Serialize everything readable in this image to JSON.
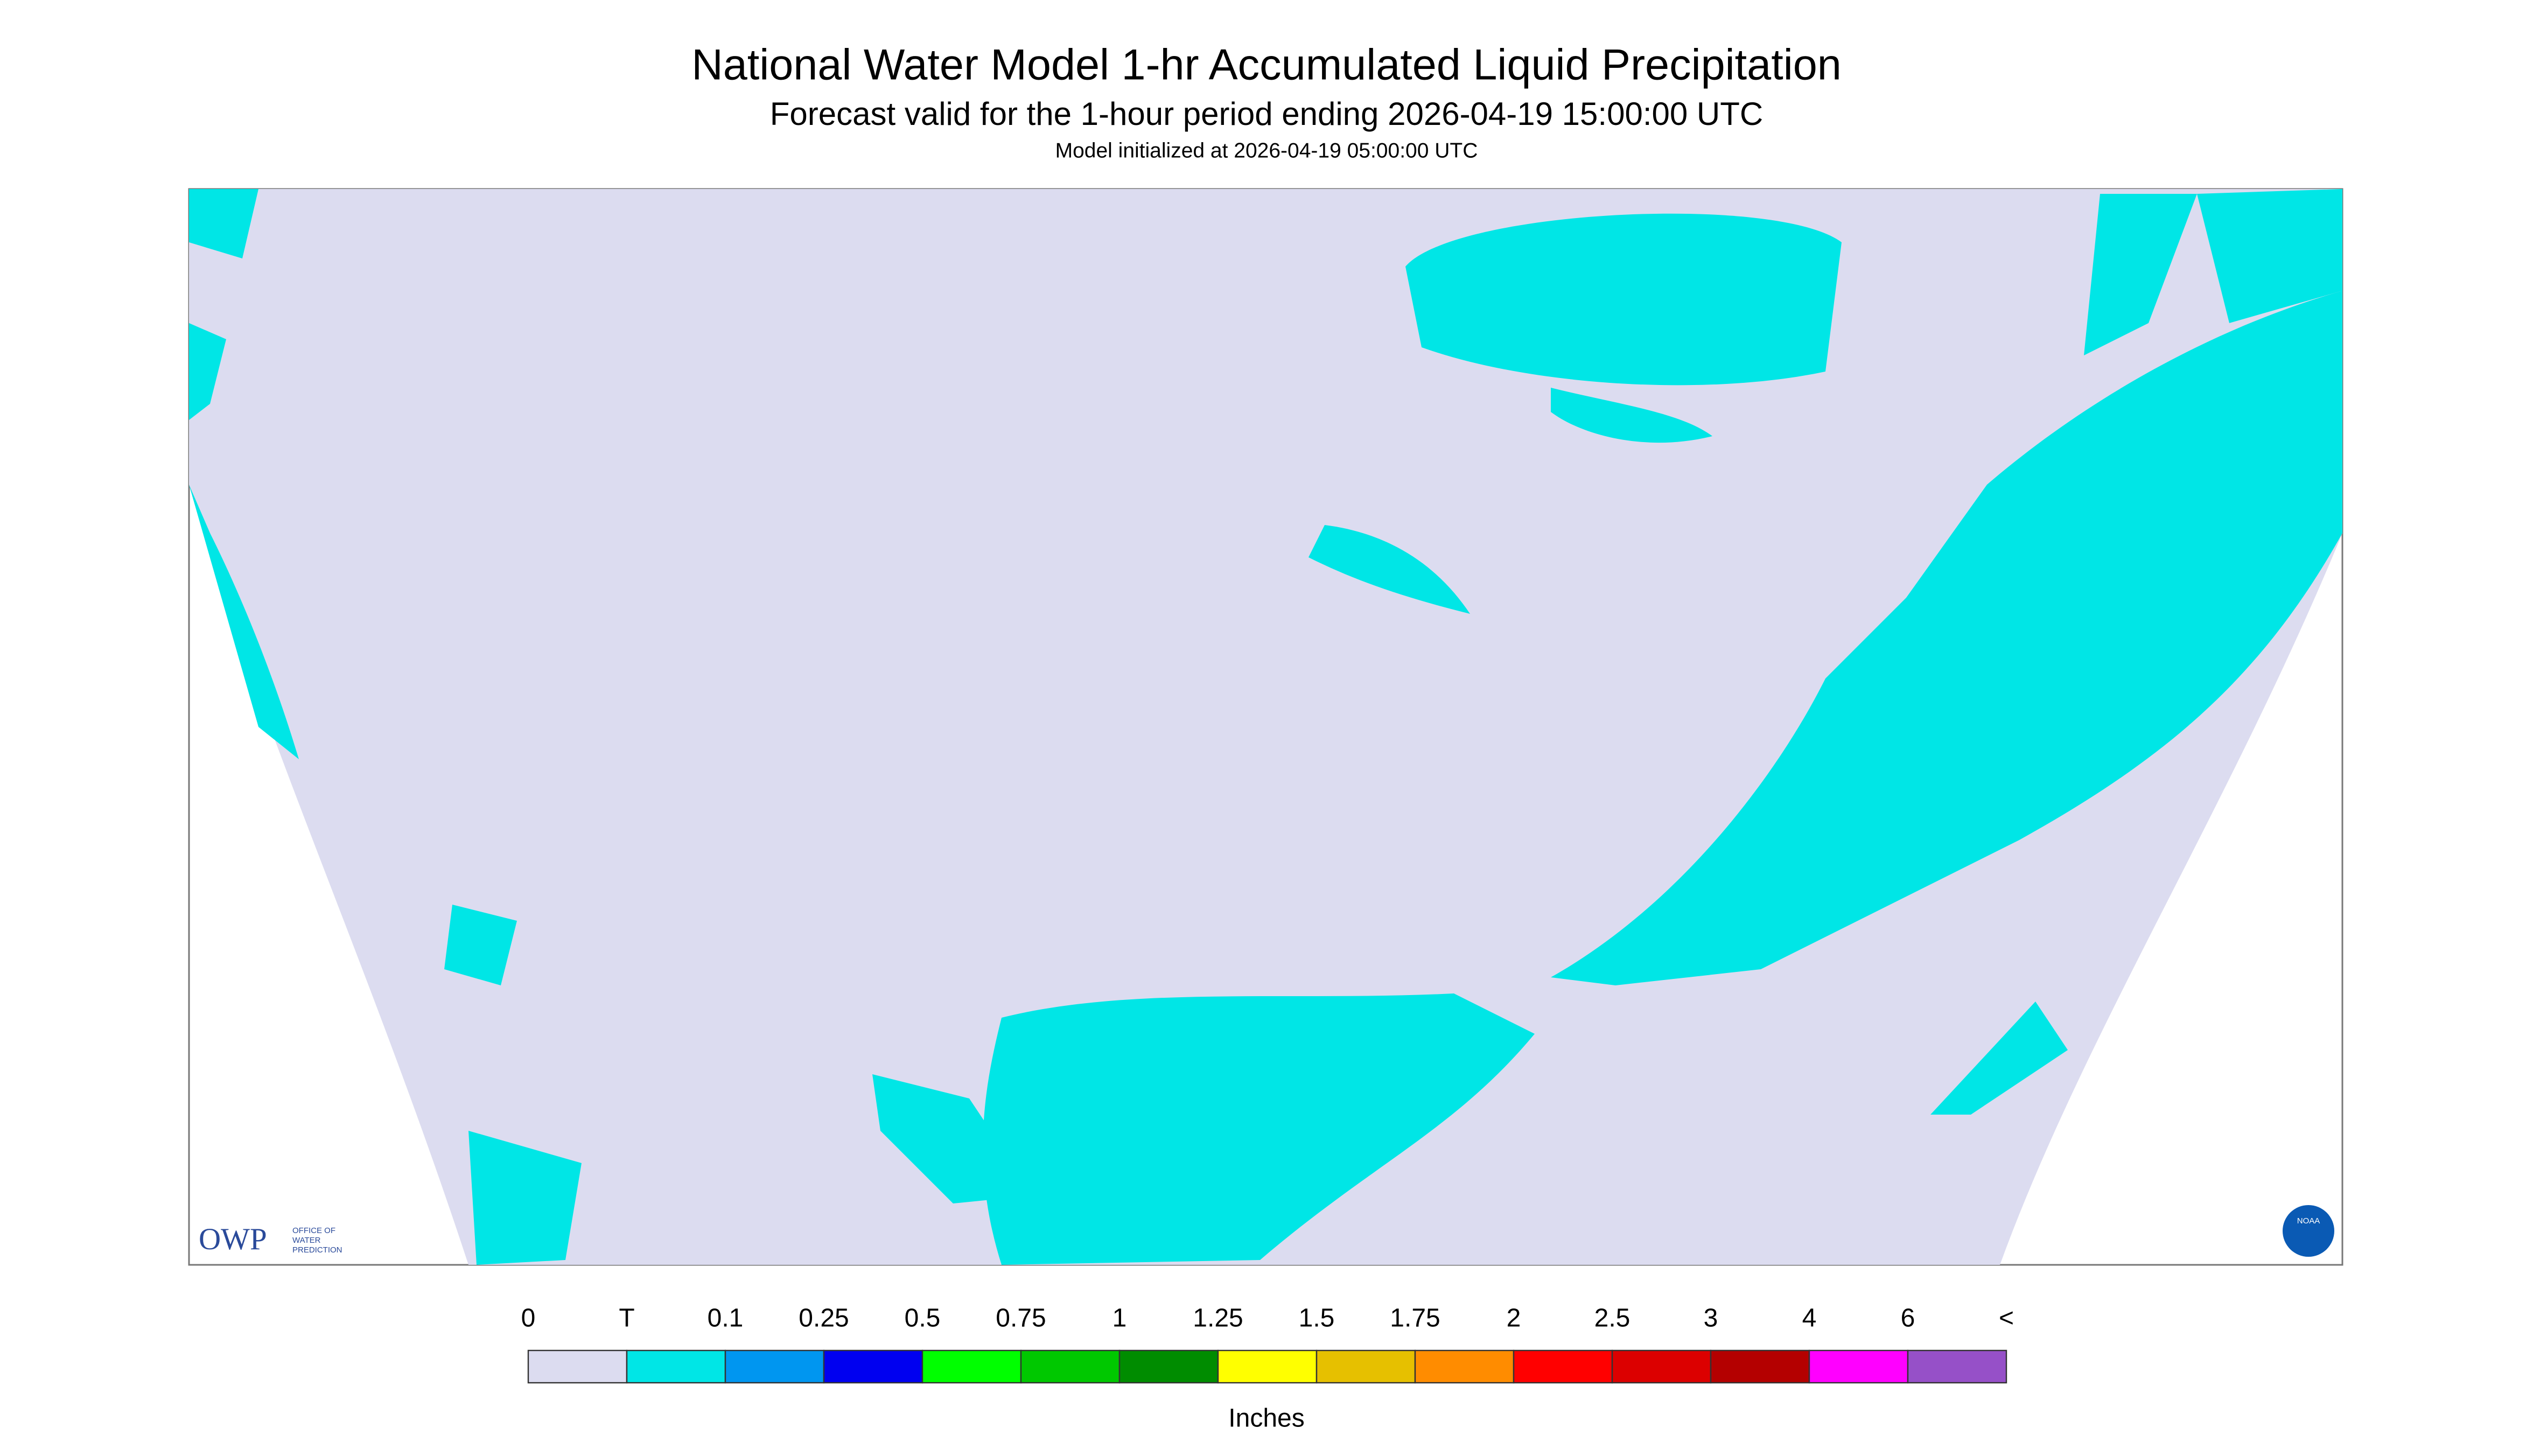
{
  "header": {
    "title": "National Water Model 1-hr Accumulated Liquid Precipitation",
    "subtitle": "Forecast valid for the 1-hour period ending 2026-04-19 15:00:00 UTC",
    "init": "Model initialized at 2026-04-19 05:00:00 UTC"
  },
  "legend": {
    "labels": [
      "0",
      "T",
      "0.1",
      "0.25",
      "0.5",
      "0.75",
      "1",
      "1.25",
      "1.5",
      "1.75",
      "2",
      "2.5",
      "3",
      "4",
      "6",
      "<"
    ],
    "colors": [
      "#dcdcf0",
      "#00e6e6",
      "#0096f0",
      "#0000f0",
      "#00ff00",
      "#00c800",
      "#008c00",
      "#ffff00",
      "#e6c000",
      "#ff8c00",
      "#ff0000",
      "#dc0000",
      "#b40000",
      "#ff00ff",
      "#9650c8"
    ],
    "units": "Inches"
  },
  "logos": {
    "owp": "OWP",
    "owp_name": [
      "OFFICE OF",
      "WATER",
      "PREDICTION"
    ],
    "noaa": "NOAA"
  }
}
